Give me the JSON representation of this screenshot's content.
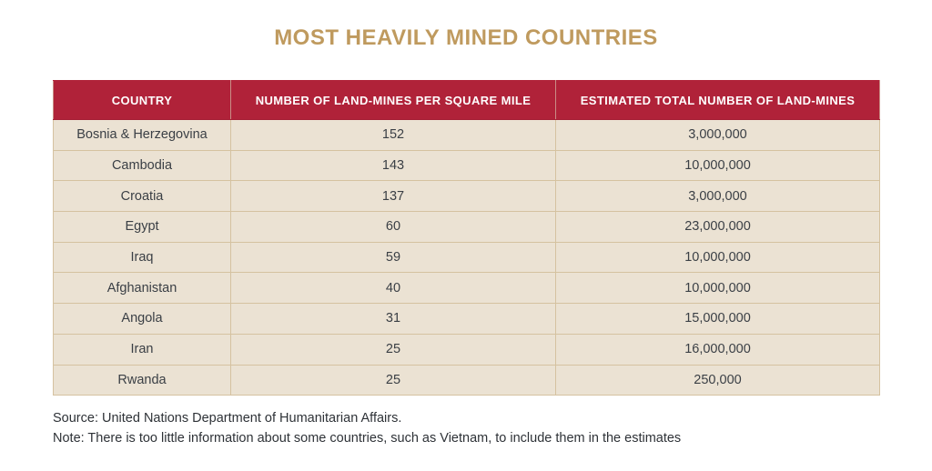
{
  "title": "MOST HEAVILY MINED COUNTRIES",
  "table": {
    "columns": [
      "COUNTRY",
      "NUMBER OF LAND-MINES PER SQUARE MILE",
      "ESTIMATED TOTAL NUMBER OF LAND-MINES"
    ],
    "rows": [
      {
        "country": "Bosnia & Herzegovina",
        "per_square_mile": "152",
        "total": "3,000,000"
      },
      {
        "country": "Cambodia",
        "per_square_mile": "143",
        "total": "10,000,000"
      },
      {
        "country": "Croatia",
        "per_square_mile": "137",
        "total": "3,000,000"
      },
      {
        "country": "Egypt",
        "per_square_mile": "60",
        "total": "23,000,000"
      },
      {
        "country": "Iraq",
        "per_square_mile": "59",
        "total": "10,000,000"
      },
      {
        "country": "Afghanistan",
        "per_square_mile": "40",
        "total": "10,000,000"
      },
      {
        "country": "Angola",
        "per_square_mile": "31",
        "total": "15,000,000"
      },
      {
        "country": "Iran",
        "per_square_mile": "25",
        "total": "16,000,000"
      },
      {
        "country": "Rwanda",
        "per_square_mile": "25",
        "total": "250,000"
      }
    ]
  },
  "footer": {
    "source": "Source: United Nations Department of Humanitarian Affairs.",
    "note": "Note: There is too little information about some countries, such as Vietnam, to include them in the estimates"
  },
  "colors": {
    "title_gold": "#bf9a5e",
    "header_red": "#b02239",
    "header_text": "#ffffff",
    "row_background": "#ebe2d3",
    "cell_border_tan": "#d5c2a0",
    "body_text": "#3a3f45"
  },
  "chart_data": {
    "type": "table",
    "title": "MOST HEAVILY MINED COUNTRIES",
    "columns": [
      "COUNTRY",
      "NUMBER OF LAND-MINES PER SQUARE MILE",
      "ESTIMATED TOTAL NUMBER OF LAND-MINES"
    ],
    "rows": [
      [
        "Bosnia & Herzegovina",
        152,
        3000000
      ],
      [
        "Cambodia",
        143,
        10000000
      ],
      [
        "Croatia",
        137,
        3000000
      ],
      [
        "Egypt",
        60,
        23000000
      ],
      [
        "Iraq",
        59,
        10000000
      ],
      [
        "Afghanistan",
        40,
        10000000
      ],
      [
        "Angola",
        31,
        15000000
      ],
      [
        "Iran",
        25,
        16000000
      ],
      [
        "Rwanda",
        25,
        250000
      ]
    ],
    "source": "United Nations Department of Humanitarian Affairs",
    "legend_position": "none",
    "grid": true
  }
}
